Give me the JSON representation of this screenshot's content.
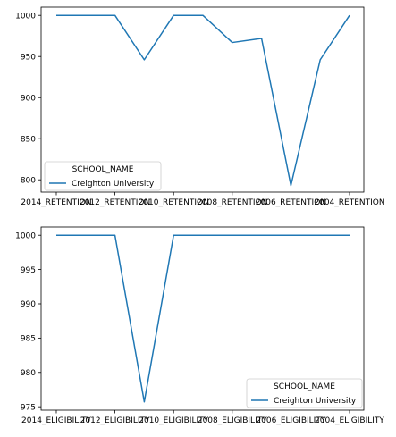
{
  "chart_data": [
    {
      "type": "line",
      "categories": [
        "2014_RETENTION",
        "",
        "2012_RETENTION",
        "",
        "2010_RETENTION",
        "",
        "2008_RETENTION",
        "",
        "2006_RETENTION",
        "",
        "2004_RETENTION"
      ],
      "x_tick_labels": [
        "2014_RETENTION",
        "2012_RETENTION",
        "2010_RETENTION",
        "2008_RETENTION",
        "2006_RETENTION",
        "2004_RETENTION"
      ],
      "series": [
        {
          "name": "Creighton University",
          "values": [
            1000,
            1000,
            1000,
            946,
            1000,
            1000,
            967,
            972,
            793,
            946,
            1000
          ]
        }
      ],
      "yticks": [
        800,
        850,
        900,
        950,
        1000
      ],
      "ylim": [
        785,
        1010
      ],
      "legend_title": "SCHOOL_NAME",
      "legend_position": "lower-left",
      "grid": false,
      "color": "#1f77b4"
    },
    {
      "type": "line",
      "categories": [
        "2014_ELIGIBILITY",
        "",
        "2012_ELIGIBILITY",
        "",
        "2010_ELIGIBILITY",
        "",
        "2008_ELIGIBILITY",
        "",
        "2006_ELIGIBILITY",
        "",
        "2004_ELIGIBILITY"
      ],
      "x_tick_labels": [
        "2014_ELIGIBILITY",
        "2012_ELIGIBILITY",
        "2010_ELIGIBILITY",
        "2008_ELIGIBILITY",
        "2006_ELIGIBILITY",
        "2004_ELIGIBILITY"
      ],
      "series": [
        {
          "name": "Creighton University",
          "values": [
            1000,
            1000,
            1000,
            975.7,
            1000,
            1000,
            1000,
            1000,
            1000,
            1000,
            1000
          ]
        }
      ],
      "yticks": [
        975,
        980,
        985,
        990,
        995,
        1000
      ],
      "ylim": [
        974.5,
        1001.2
      ],
      "legend_title": "SCHOOL_NAME",
      "legend_position": "lower-right",
      "grid": false,
      "color": "#1f77b4"
    }
  ]
}
